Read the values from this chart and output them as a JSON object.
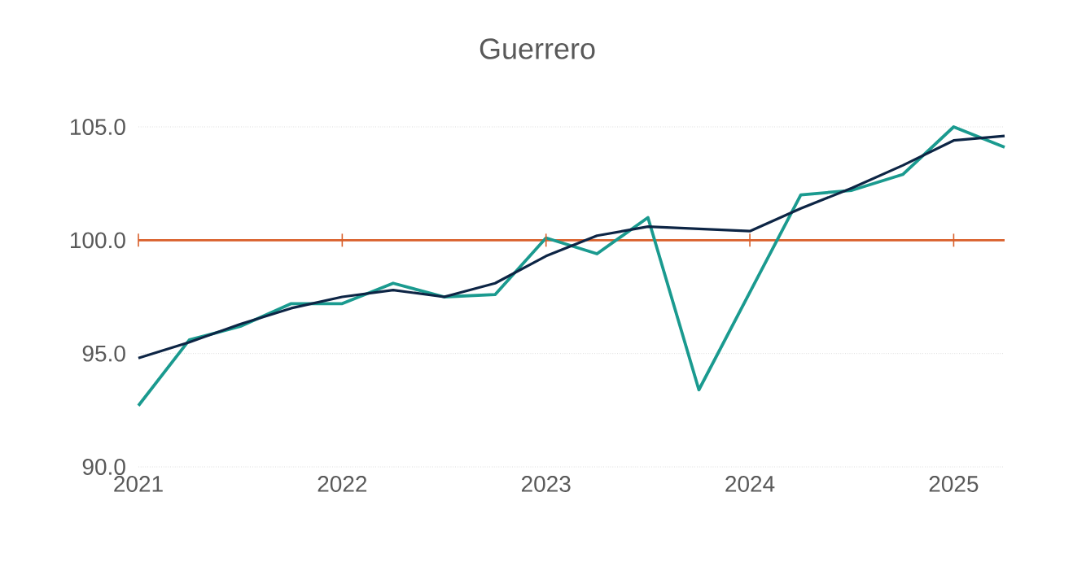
{
  "chart_data": {
    "type": "line",
    "title": "Guerrero",
    "x": [
      2021,
      2021.25,
      2021.5,
      2021.75,
      2022,
      2022.25,
      2022.5,
      2022.75,
      2023,
      2023.25,
      2023.5,
      2023.75,
      2024,
      2024.25,
      2024.5,
      2024.75,
      2025,
      2025.25
    ],
    "series": [
      {
        "color": "#1a9a8f",
        "values": [
          92.7,
          95.6,
          96.2,
          97.2,
          97.2,
          98.1,
          97.5,
          97.6,
          100.1,
          99.4,
          101.0,
          93.4,
          97.7,
          102.0,
          102.2,
          102.9,
          105.0,
          104.1
        ]
      },
      {
        "color": "#0d2545",
        "values": [
          94.8,
          95.5,
          96.3,
          97.0,
          97.5,
          97.8,
          97.5,
          98.1,
          99.3,
          100.2,
          100.6,
          100.5,
          100.4,
          101.4,
          102.3,
          103.3,
          104.4,
          104.6
        ]
      }
    ],
    "xlim": [
      2021,
      2025.25
    ],
    "xticks": [
      2021,
      2022,
      2023,
      2024,
      2025
    ],
    "ylim": [
      90,
      105
    ],
    "yticks": [
      {
        "value": 90,
        "label": "90.0"
      },
      {
        "value": 95,
        "label": "95.0"
      },
      {
        "value": 100,
        "label": "100.0"
      },
      {
        "value": 105,
        "label": "105.0"
      }
    ],
    "grid": "y",
    "marker": "none",
    "line_style": "solid",
    "ref_lines": [
      {
        "axis": "y",
        "value": 100,
        "color": "#d9602b"
      }
    ]
  }
}
